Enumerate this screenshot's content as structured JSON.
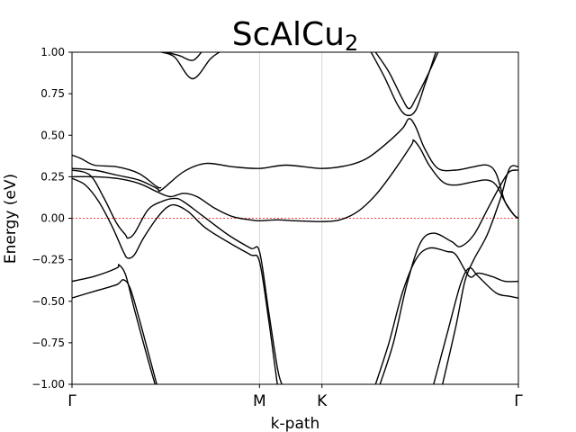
{
  "chart_data": {
    "type": "line",
    "title": "ScAlCu",
    "title_subscript": "2",
    "xlabel": "k-path",
    "ylabel": "Energy (eV)",
    "ylim": [
      -1.0,
      1.0
    ],
    "yticks": [
      "1.00",
      "0.75",
      "0.50",
      "0.25",
      "0.00",
      "−0.25",
      "−0.50",
      "−0.75",
      "−1.00"
    ],
    "ytick_values": [
      1.0,
      0.75,
      0.5,
      0.25,
      0.0,
      -0.25,
      -0.5,
      -0.75,
      -1.0
    ],
    "kpoints": [
      {
        "label": "Γ",
        "position": 0.0
      },
      {
        "label": "M",
        "position": 0.42
      },
      {
        "label": "K",
        "position": 0.56
      },
      {
        "label": "Γ",
        "position": 1.0
      }
    ],
    "fermi_level": 0.0,
    "fermi_color": "#ff0000",
    "band_color": "#000000",
    "grid": "vertical lines at high-symmetry points",
    "series": [
      {
        "values": [
          [
            0.0,
            -0.48
          ],
          [
            0.05,
            -0.44
          ],
          [
            0.1,
            -0.4
          ],
          [
            0.115,
            -0.37
          ],
          [
            0.13,
            -0.42
          ],
          [
            0.15,
            -0.6
          ],
          [
            0.17,
            -0.8
          ],
          [
            0.19,
            -1.0
          ]
        ]
      },
      {
        "values": [
          [
            0.0,
            -0.38
          ],
          [
            0.05,
            -0.35
          ],
          [
            0.1,
            -0.3
          ],
          [
            0.105,
            -0.28
          ],
          [
            0.12,
            -0.34
          ],
          [
            0.14,
            -0.55
          ],
          [
            0.165,
            -0.8
          ],
          [
            0.186,
            -1.0
          ]
        ]
      },
      {
        "values": [
          [
            0.0,
            0.24
          ],
          [
            0.03,
            0.2
          ],
          [
            0.06,
            0.1
          ],
          [
            0.09,
            -0.05
          ],
          [
            0.115,
            -0.2
          ],
          [
            0.125,
            -0.24
          ],
          [
            0.14,
            -0.22
          ],
          [
            0.16,
            -0.12
          ],
          [
            0.19,
            0.0
          ],
          [
            0.21,
            0.06
          ],
          [
            0.23,
            0.08
          ],
          [
            0.26,
            0.04
          ],
          [
            0.3,
            -0.06
          ],
          [
            0.36,
            -0.16
          ],
          [
            0.4,
            -0.22
          ],
          [
            0.42,
            -0.26
          ],
          [
            0.44,
            -0.6
          ],
          [
            0.455,
            -0.9
          ],
          [
            0.46,
            -1.0
          ]
        ]
      },
      {
        "values": [
          [
            0.0,
            0.29
          ],
          [
            0.04,
            0.26
          ],
          [
            0.07,
            0.13
          ],
          [
            0.1,
            -0.03
          ],
          [
            0.12,
            -0.1
          ],
          [
            0.125,
            -0.12
          ],
          [
            0.14,
            -0.09
          ],
          [
            0.17,
            0.05
          ],
          [
            0.2,
            0.1
          ],
          [
            0.23,
            0.12
          ],
          [
            0.25,
            0.1
          ],
          [
            0.29,
            0.02
          ],
          [
            0.35,
            -0.1
          ],
          [
            0.4,
            -0.18
          ],
          [
            0.42,
            -0.2
          ],
          [
            0.44,
            -0.55
          ],
          [
            0.46,
            -0.9
          ],
          [
            0.47,
            -1.0
          ]
        ]
      },
      {
        "values": [
          [
            0.0,
            0.25
          ],
          [
            0.05,
            0.25
          ],
          [
            0.1,
            0.24
          ],
          [
            0.15,
            0.21
          ],
          [
            0.19,
            0.16
          ],
          [
            0.22,
            0.13
          ],
          [
            0.25,
            0.15
          ],
          [
            0.28,
            0.13
          ],
          [
            0.32,
            0.06
          ],
          [
            0.36,
            0.01
          ],
          [
            0.4,
            -0.01
          ],
          [
            0.42,
            -0.015
          ],
          [
            0.46,
            -0.01
          ],
          [
            0.5,
            -0.015
          ],
          [
            0.56,
            -0.02
          ],
          [
            0.6,
            -0.01
          ],
          [
            0.64,
            0.04
          ],
          [
            0.68,
            0.14
          ],
          [
            0.72,
            0.28
          ],
          [
            0.76,
            0.44
          ],
          [
            0.765,
            0.47
          ],
          [
            0.78,
            0.42
          ],
          [
            0.8,
            0.32
          ],
          [
            0.83,
            0.22
          ],
          [
            0.86,
            0.2
          ],
          [
            0.9,
            0.22
          ],
          [
            0.93,
            0.23
          ],
          [
            0.95,
            0.2
          ],
          [
            0.97,
            0.1
          ],
          [
            0.99,
            0.02
          ],
          [
            1.0,
            0.0
          ]
        ]
      },
      {
        "values": [
          [
            0.0,
            0.3
          ],
          [
            0.05,
            0.29
          ],
          [
            0.1,
            0.26
          ],
          [
            0.15,
            0.23
          ],
          [
            0.19,
            0.18
          ],
          [
            0.2,
            0.17
          ],
          [
            0.25,
            0.28
          ],
          [
            0.3,
            0.33
          ],
          [
            0.36,
            0.31
          ],
          [
            0.42,
            0.3
          ],
          [
            0.48,
            0.32
          ],
          [
            0.56,
            0.3
          ],
          [
            0.62,
            0.32
          ],
          [
            0.66,
            0.36
          ],
          [
            0.7,
            0.44
          ],
          [
            0.74,
            0.54
          ],
          [
            0.755,
            0.6
          ],
          [
            0.77,
            0.55
          ],
          [
            0.79,
            0.42
          ],
          [
            0.82,
            0.3
          ],
          [
            0.86,
            0.29
          ],
          [
            0.9,
            0.31
          ],
          [
            0.93,
            0.32
          ],
          [
            0.95,
            0.27
          ],
          [
            0.97,
            0.1
          ],
          [
            0.99,
            0.02
          ],
          [
            1.0,
            0.0
          ]
        ]
      },
      {
        "values": [
          [
            0.0,
            0.38
          ],
          [
            0.02,
            0.36
          ],
          [
            0.05,
            0.32
          ],
          [
            0.1,
            0.31
          ],
          [
            0.15,
            0.27
          ],
          [
            0.19,
            0.19
          ],
          [
            0.2,
            0.185
          ]
        ]
      },
      {
        "values": [
          [
            0.2,
            1.0
          ],
          [
            0.23,
            0.97
          ],
          [
            0.27,
            0.84
          ],
          [
            0.31,
            0.96
          ],
          [
            0.33,
            1.0
          ]
        ]
      },
      {
        "values": [
          [
            0.21,
            1.0
          ],
          [
            0.24,
            0.98
          ],
          [
            0.27,
            0.95
          ],
          [
            0.29,
            1.0
          ]
        ]
      },
      {
        "values": [
          [
            0.68,
            1.0
          ],
          [
            0.71,
            0.88
          ],
          [
            0.74,
            0.72
          ],
          [
            0.755,
            0.66
          ],
          [
            0.77,
            0.72
          ],
          [
            0.8,
            0.88
          ],
          [
            0.82,
            1.0
          ]
        ]
      },
      {
        "values": [
          [
            0.67,
            1.0
          ],
          [
            0.7,
            0.85
          ],
          [
            0.73,
            0.68
          ],
          [
            0.75,
            0.62
          ],
          [
            0.77,
            0.65
          ],
          [
            0.79,
            0.8
          ],
          [
            0.815,
            1.0
          ]
        ]
      },
      {
        "values": [
          [
            0.68,
            -1.0
          ],
          [
            0.71,
            -0.75
          ],
          [
            0.74,
            -0.45
          ],
          [
            0.77,
            -0.25
          ],
          [
            0.8,
            -0.18
          ],
          [
            0.84,
            -0.2
          ],
          [
            0.86,
            -0.22
          ],
          [
            0.89,
            -0.35
          ],
          [
            0.91,
            -0.33
          ],
          [
            0.94,
            -0.35
          ],
          [
            0.97,
            -0.38
          ],
          [
            1.0,
            -0.38
          ]
        ]
      },
      {
        "values": [
          [
            0.69,
            -1.0
          ],
          [
            0.72,
            -0.75
          ],
          [
            0.75,
            -0.4
          ],
          [
            0.78,
            -0.15
          ],
          [
            0.81,
            -0.09
          ],
          [
            0.85,
            -0.14
          ],
          [
            0.87,
            -0.17
          ],
          [
            0.9,
            -0.1
          ],
          [
            0.93,
            0.05
          ],
          [
            0.96,
            0.2
          ],
          [
            0.98,
            0.28
          ],
          [
            1.0,
            0.29
          ]
        ]
      },
      {
        "values": [
          [
            0.81,
            -1.0
          ],
          [
            0.84,
            -0.7
          ],
          [
            0.87,
            -0.4
          ],
          [
            0.89,
            -0.3
          ],
          [
            0.91,
            -0.35
          ],
          [
            0.95,
            -0.45
          ],
          [
            0.98,
            -0.47
          ],
          [
            1.0,
            -0.48
          ]
        ]
      },
      {
        "values": [
          [
            0.83,
            -1.0
          ],
          [
            0.86,
            -0.65
          ],
          [
            0.88,
            -0.38
          ],
          [
            0.9,
            -0.25
          ],
          [
            0.93,
            -0.1
          ],
          [
            0.96,
            0.12
          ],
          [
            0.98,
            0.3
          ],
          [
            1.0,
            0.31
          ]
        ]
      }
    ]
  }
}
